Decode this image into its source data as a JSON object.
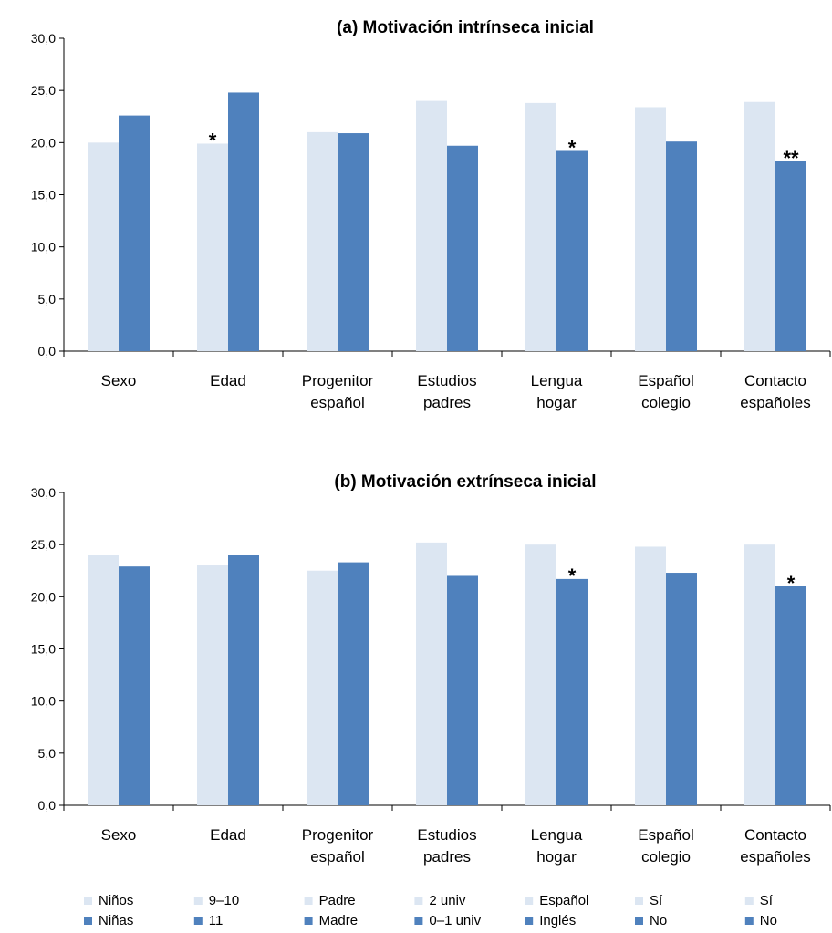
{
  "colors": {
    "series_a": "#dce6f2",
    "series_b": "#4f81bd",
    "axis": "#000000"
  },
  "chart_data": [
    {
      "type": "bar",
      "title": "(a) Motivación intrínseca inicial",
      "categories": [
        [
          "Sexo"
        ],
        [
          "Edad"
        ],
        [
          "Progenitor",
          "español"
        ],
        [
          "Estudios",
          "padres"
        ],
        [
          "Lengua",
          "hogar"
        ],
        [
          "Español",
          "colegio"
        ],
        [
          "Contacto",
          "españoles"
        ]
      ],
      "series": [
        {
          "values": [
            20.0,
            19.9,
            21.0,
            24.0,
            23.8,
            23.4,
            23.9
          ]
        },
        {
          "values": [
            22.6,
            24.8,
            20.9,
            19.7,
            19.2,
            20.1,
            18.2
          ]
        }
      ],
      "significance": [
        "",
        "*",
        "",
        "",
        "*",
        "",
        "**"
      ],
      "significance_on": [
        "",
        "a",
        "",
        "",
        "b",
        "",
        "b"
      ],
      "ylim": [
        0,
        30
      ],
      "yticks": [
        "0,0",
        "5,0",
        "10,0",
        "15,0",
        "20,0",
        "25,0",
        "30,0"
      ],
      "grid": false
    },
    {
      "type": "bar",
      "title": "(b) Motivación extrínseca inicial",
      "categories": [
        [
          "Sexo"
        ],
        [
          "Edad"
        ],
        [
          "Progenitor",
          "español"
        ],
        [
          "Estudios",
          "padres"
        ],
        [
          "Lengua",
          "hogar"
        ],
        [
          "Español",
          "colegio"
        ],
        [
          "Contacto",
          "españoles"
        ]
      ],
      "series": [
        {
          "values": [
            24.0,
            23.0,
            22.5,
            25.2,
            25.0,
            24.8,
            25.0
          ]
        },
        {
          "values": [
            22.9,
            24.0,
            23.3,
            22.0,
            21.7,
            22.3,
            21.0
          ]
        }
      ],
      "significance": [
        "",
        "",
        "",
        "",
        "*",
        "",
        "*"
      ],
      "significance_on": [
        "",
        "",
        "",
        "",
        "b",
        "",
        "b"
      ],
      "ylim": [
        0,
        30
      ],
      "yticks": [
        "0,0",
        "5,0",
        "10,0",
        "15,0",
        "20,0",
        "25,0",
        "30,0"
      ],
      "grid": false
    }
  ],
  "legend": [
    {
      "a": "Niños",
      "b": "Niñas"
    },
    {
      "a": "9–10",
      "b": "11"
    },
    {
      "a": "Padre",
      "b": "Madre"
    },
    {
      "a": "2 univ",
      "b": "0–1 univ"
    },
    {
      "a": "Español",
      "b": "Inglés"
    },
    {
      "a": "Sí",
      "b": "No"
    },
    {
      "a": "Sí",
      "b": "No"
    }
  ]
}
